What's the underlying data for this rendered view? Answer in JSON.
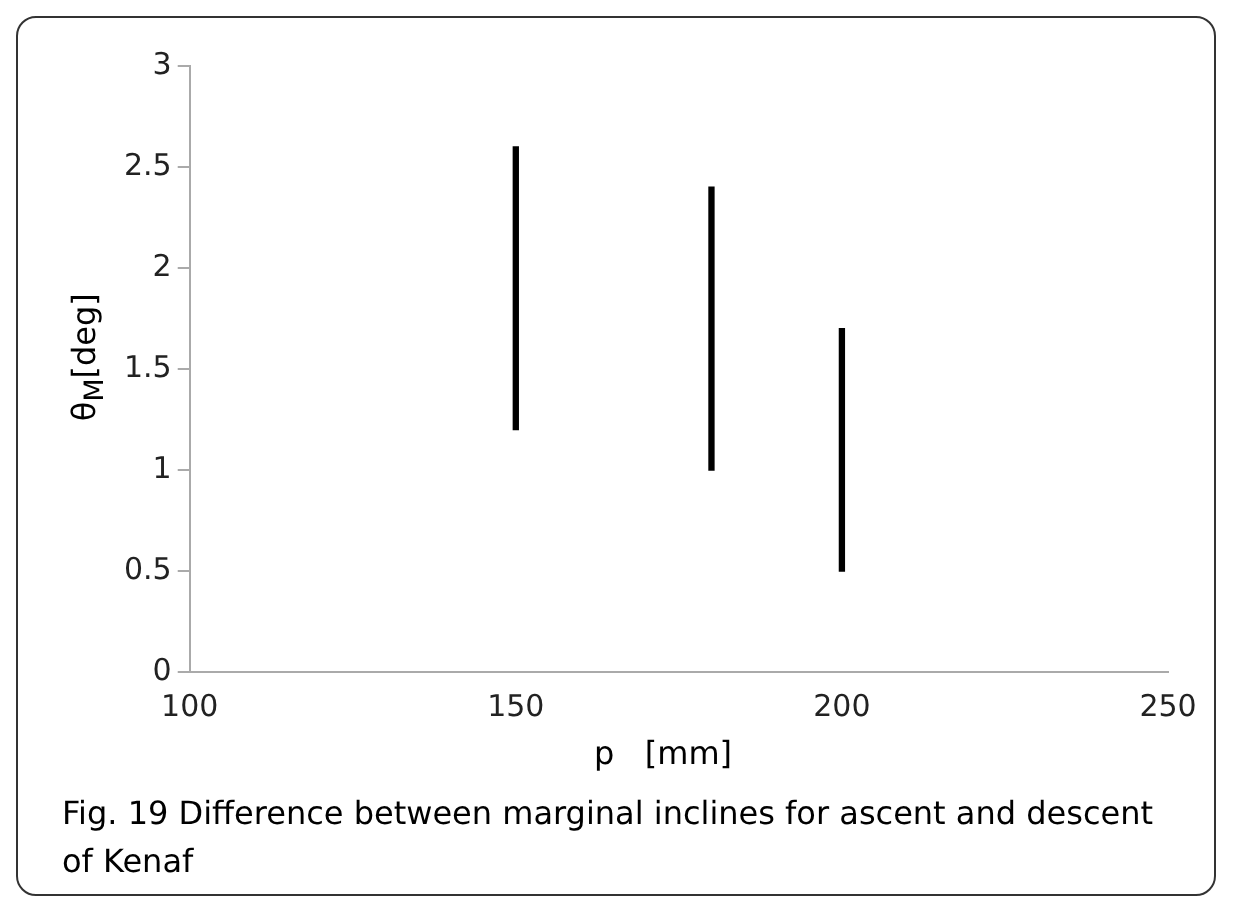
{
  "chart_data": {
    "type": "bar",
    "x": [
      150,
      180,
      200
    ],
    "base": [
      1.2,
      1.0,
      0.5
    ],
    "values": [
      1.4,
      1.4,
      1.2
    ],
    "color": "#000000",
    "xlim": [
      100,
      250
    ],
    "xticks": [
      100,
      150,
      200,
      250
    ],
    "ylim": [
      0,
      3
    ],
    "yticks": [
      0,
      0.5,
      1,
      1.5,
      2,
      2.5,
      3
    ],
    "xlabel": "p   [mm]",
    "ylabel": "θ$_{M}$[deg]",
    "grid": false,
    "annotations": [
      "Fig. 19  Difference between marginal inclines for ascent and descent of Kenaf"
    ]
  }
}
